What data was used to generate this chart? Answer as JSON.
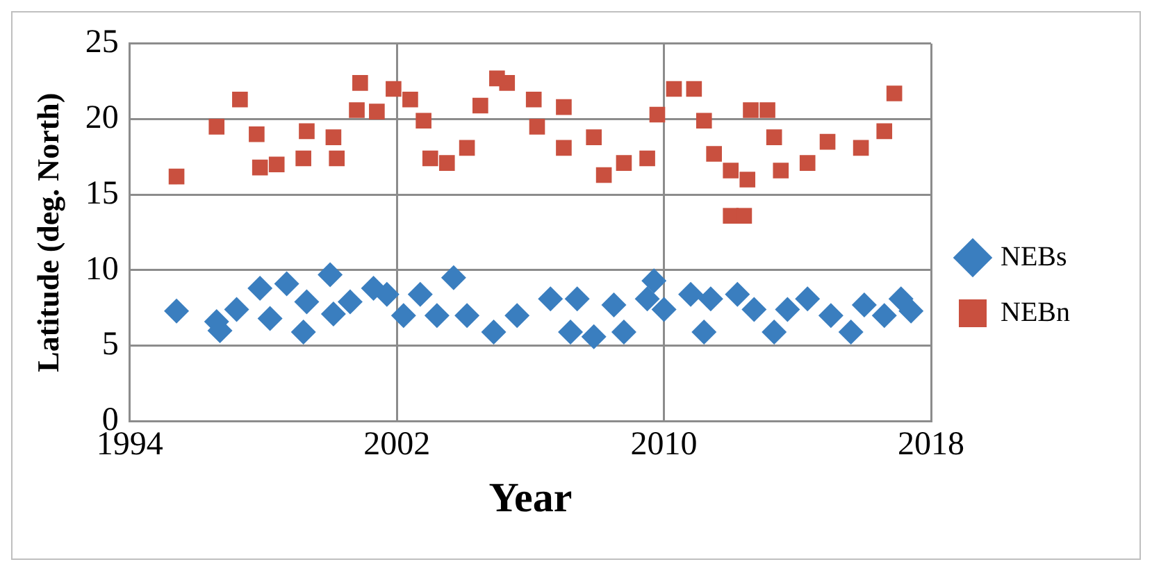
{
  "chart_data": {
    "type": "scatter",
    "xlabel": "Year",
    "ylabel": "Latitude (deg. North)",
    "xlim": [
      1994,
      2018
    ],
    "xticks": [
      1994,
      2002,
      2010,
      2018
    ],
    "ylim": [
      0,
      25
    ],
    "yticks": [
      0,
      5,
      10,
      15,
      20,
      25
    ],
    "grid": true,
    "legend": "right",
    "series": [
      {
        "name": "NEBs",
        "color": "#3a7ebf",
        "marker": "diamond",
        "x": [
          1995.4,
          1996.6,
          1996.7,
          1997.2,
          1997.9,
          1998.2,
          1998.7,
          1999.2,
          1999.3,
          2000.0,
          2000.1,
          2000.6,
          2001.3,
          2001.7,
          2002.2,
          2002.7,
          2003.2,
          2003.7,
          2004.1,
          2004.9,
          2005.6,
          2006.6,
          2007.2,
          2007.4,
          2007.9,
          2008.5,
          2008.8,
          2009.5,
          2009.7,
          2010.0,
          2010.8,
          2011.2,
          2011.4,
          2012.2,
          2012.7,
          2013.3,
          2013.7,
          2014.3,
          2015.0,
          2015.6,
          2016.0,
          2016.6,
          2017.1,
          2017.4
        ],
        "values": [
          7.3,
          6.6,
          6.0,
          7.4,
          8.8,
          6.8,
          9.1,
          5.9,
          7.9,
          9.7,
          7.1,
          7.9,
          8.8,
          8.4,
          7.0,
          8.4,
          7.0,
          9.5,
          7.0,
          5.9,
          7.0,
          8.1,
          5.9,
          8.1,
          5.6,
          7.7,
          5.9,
          8.1,
          9.3,
          7.4,
          8.4,
          5.9,
          8.1,
          8.4,
          7.4,
          5.9,
          7.4,
          8.1,
          7.0,
          5.9,
          7.7,
          7.0,
          8.1,
          7.3
        ]
      },
      {
        "name": "NEBn",
        "color": "#c9503f",
        "marker": "square",
        "x": [
          1995.4,
          1996.6,
          1997.3,
          1997.8,
          1997.9,
          1998.4,
          1999.2,
          1999.3,
          2000.1,
          2000.2,
          2000.8,
          2000.9,
          2001.4,
          2001.9,
          2002.4,
          2002.8,
          2003.0,
          2003.5,
          2004.1,
          2004.5,
          2005.0,
          2005.3,
          2006.1,
          2006.2,
          2007.0,
          2007.0,
          2007.9,
          2008.2,
          2008.8,
          2009.5,
          2009.8,
          2010.3,
          2010.9,
          2011.2,
          2011.5,
          2012.0,
          2012.0,
          2012.4,
          2012.5,
          2012.6,
          2013.1,
          2013.3,
          2013.5,
          2014.3,
          2014.9,
          2015.9,
          2016.6,
          2016.9
        ],
        "values": [
          16.2,
          19.5,
          21.3,
          19.0,
          16.8,
          17.0,
          17.4,
          19.2,
          18.8,
          17.4,
          20.6,
          22.4,
          20.5,
          22.0,
          21.3,
          19.9,
          17.4,
          17.1,
          18.1,
          20.9,
          22.7,
          22.4,
          21.3,
          19.5,
          20.8,
          18.1,
          18.8,
          16.3,
          17.1,
          17.4,
          20.3,
          22.0,
          22.0,
          19.9,
          17.7,
          16.6,
          13.6,
          13.6,
          16.0,
          20.6,
          20.6,
          18.8,
          16.6,
          17.1,
          18.5,
          18.1,
          19.2,
          21.7
        ]
      }
    ]
  }
}
